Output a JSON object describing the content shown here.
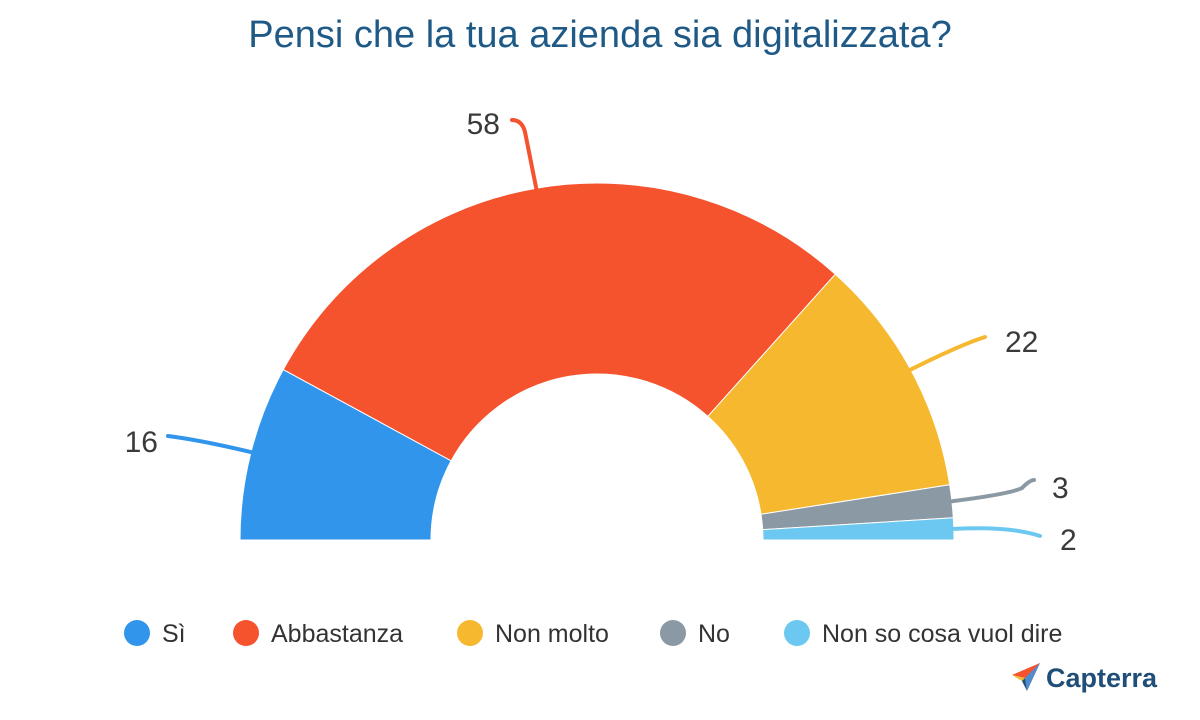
{
  "chart_data": {
    "type": "pie",
    "variant": "half-donut",
    "title": "Pensi che la tua azienda sia digitalizzata?",
    "categories": [
      "Sì",
      "Abbastanza",
      "Non molto",
      "No",
      "Non so cosa vuol dire"
    ],
    "values": [
      16,
      58,
      22,
      3,
      2
    ],
    "colors": [
      "#3196EB",
      "#F5522E",
      "#F5B82E",
      "#8A99A3",
      "#6CC8F0"
    ],
    "legend_position": "bottom"
  },
  "brand": {
    "logo_text": "Capterra",
    "logo_icon": "capterra-arrow-icon"
  }
}
